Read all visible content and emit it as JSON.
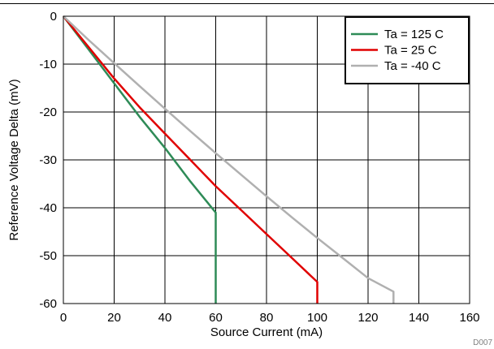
{
  "chart_data": {
    "type": "line",
    "xlabel": "Source Current (mA)",
    "ylabel": "Reference Voltage Delta (mV)",
    "xlim": [
      0,
      160
    ],
    "ylim": [
      -60,
      0
    ],
    "xticks": [
      "0",
      "20",
      "40",
      "60",
      "80",
      "100",
      "120",
      "140",
      "160"
    ],
    "yticks": [
      "0",
      "-10",
      "-20",
      "-30",
      "-40",
      "-50",
      "-60"
    ],
    "grid": true,
    "legend_position": "top-right",
    "figure_id": "D007",
    "series": [
      {
        "name": "Ta = 125 C",
        "color": "#2e8b57",
        "x": [
          0,
          10,
          20,
          30,
          40,
          50,
          60,
          60,
          60
        ],
        "y": [
          0,
          -7,
          -14,
          -21,
          -27.5,
          -34.5,
          -41,
          -50,
          -60
        ]
      },
      {
        "name": "Ta = 25 C",
        "color": "#e00000",
        "x": [
          0,
          10,
          20,
          30,
          40,
          50,
          60,
          70,
          80,
          90,
          100,
          100,
          100
        ],
        "y": [
          0,
          -6.5,
          -13,
          -19,
          -24.5,
          -30,
          -35.5,
          -40.5,
          -45.5,
          -50.5,
          -55.5,
          -58,
          -60
        ]
      },
      {
        "name": "Ta = -40 C",
        "color": "#b0b0b0",
        "x": [
          0,
          10,
          20,
          30,
          40,
          50,
          60,
          70,
          80,
          90,
          100,
          110,
          120,
          130,
          130
        ],
        "y": [
          0,
          -5,
          -9.8,
          -14.6,
          -19.3,
          -24,
          -28.6,
          -33.1,
          -37.6,
          -42,
          -46.3,
          -50.5,
          -54.7,
          -57.5,
          -60
        ]
      }
    ]
  }
}
